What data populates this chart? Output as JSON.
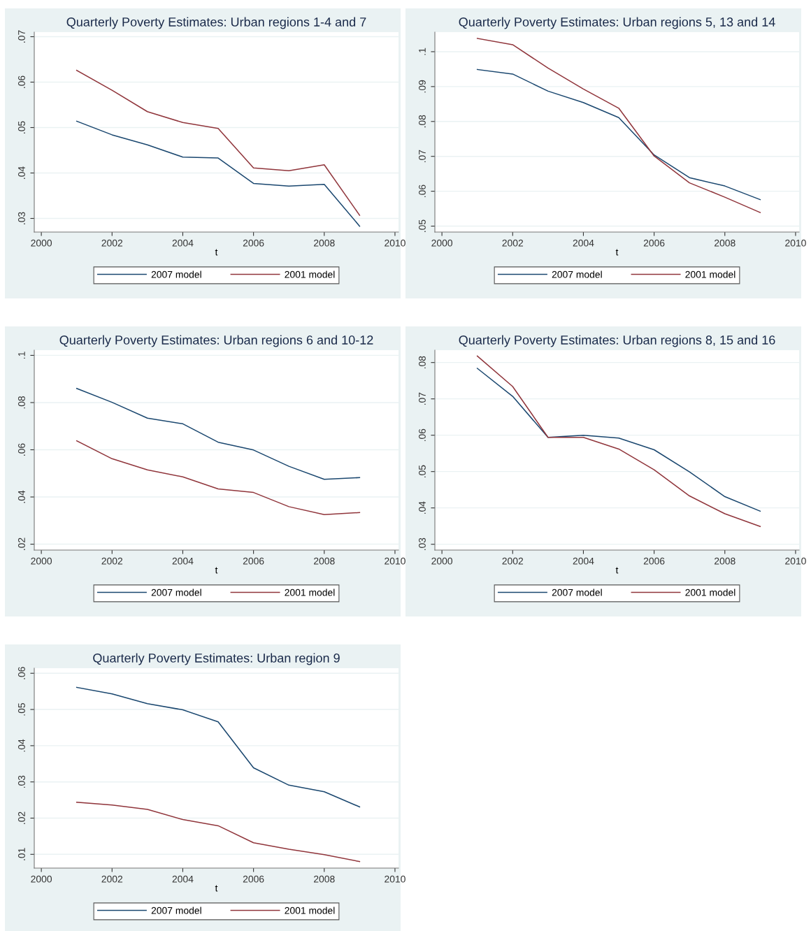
{
  "chart_data": [
    {
      "type": "line",
      "title": "Quarterly Poverty Estimates: Urban regions 1-4 and 7",
      "xlabel": "t",
      "x": [
        2001,
        2002,
        2003,
        2004,
        2005,
        2006,
        2007,
        2008,
        2009
      ],
      "xlim": [
        1999.8,
        2010.1
      ],
      "xticks": [
        2000,
        2002,
        2004,
        2006,
        2008,
        2010
      ],
      "ylim": [
        0.027,
        0.071
      ],
      "yticks": [
        {
          "value": 0.03,
          "label": ".03"
        },
        {
          "value": 0.04,
          "label": ".04"
        },
        {
          "value": 0.05,
          "label": ".05"
        },
        {
          "value": 0.06,
          "label": ".06"
        },
        {
          "value": 0.07,
          "label": ".07"
        }
      ],
      "grid": "y",
      "legend": "bottom",
      "series": [
        {
          "name": "2007 model",
          "color": "#1a476f",
          "values": [
            0.0514,
            0.0484,
            0.0462,
            0.0435,
            0.0433,
            0.0377,
            0.0371,
            0.0375,
            0.0283
          ]
        },
        {
          "name": "2001 model",
          "color": "#90353b",
          "values": [
            0.0626,
            0.0582,
            0.0535,
            0.0511,
            0.0498,
            0.0411,
            0.0405,
            0.0418,
            0.0307
          ]
        }
      ]
    },
    {
      "type": "line",
      "title": "Quarterly Poverty Estimates: Urban regions 5, 13 and 14",
      "xlabel": "t",
      "x": [
        2001,
        2002,
        2003,
        2004,
        2005,
        2006,
        2007,
        2008,
        2009
      ],
      "xlim": [
        1999.8,
        2010.1
      ],
      "xticks": [
        2000,
        2002,
        2004,
        2006,
        2008,
        2010
      ],
      "ylim": [
        0.0483,
        0.1056
      ],
      "yticks": [
        {
          "value": 0.05,
          "label": ".05"
        },
        {
          "value": 0.06,
          "label": ".06"
        },
        {
          "value": 0.07,
          "label": ".07"
        },
        {
          "value": 0.08,
          "label": ".08"
        },
        {
          "value": 0.09,
          "label": ".09"
        },
        {
          "value": 0.1,
          "label": ".1"
        }
      ],
      "grid": "y",
      "legend": "bottom",
      "series": [
        {
          "name": "2007 model",
          "color": "#1a476f",
          "values": [
            0.0949,
            0.0936,
            0.0887,
            0.0854,
            0.0811,
            0.0704,
            0.0639,
            0.0615,
            0.0576
          ]
        },
        {
          "name": "2001 model",
          "color": "#90353b",
          "values": [
            0.1038,
            0.102,
            0.0953,
            0.0893,
            0.0838,
            0.0701,
            0.0624,
            0.0583,
            0.0539
          ]
        }
      ]
    },
    {
      "type": "line",
      "title": "Quarterly Poverty Estimates: Urban regions 6 and 10-12",
      "xlabel": "t",
      "x": [
        2001,
        2002,
        2003,
        2004,
        2005,
        2006,
        2007,
        2008,
        2009
      ],
      "xlim": [
        1999.8,
        2010.1
      ],
      "xticks": [
        2000,
        2002,
        2004,
        2006,
        2008,
        2010
      ],
      "ylim": [
        0.0175,
        0.1022
      ],
      "yticks": [
        {
          "value": 0.02,
          "label": ".02"
        },
        {
          "value": 0.04,
          "label": ".04"
        },
        {
          "value": 0.06,
          "label": ".06"
        },
        {
          "value": 0.08,
          "label": ".08"
        },
        {
          "value": 0.1,
          "label": ".1"
        }
      ],
      "grid": "y",
      "legend": "bottom",
      "series": [
        {
          "name": "2007 model",
          "color": "#1a476f",
          "values": [
            0.086,
            0.0801,
            0.0734,
            0.071,
            0.0632,
            0.0599,
            0.053,
            0.0475,
            0.0482
          ]
        },
        {
          "name": "2001 model",
          "color": "#90353b",
          "values": [
            0.0638,
            0.0562,
            0.0515,
            0.0485,
            0.0434,
            0.0419,
            0.0359,
            0.0325,
            0.0334
          ]
        }
      ]
    },
    {
      "type": "line",
      "title": "Quarterly Poverty Estimates: Urban regions 8, 15 and 16",
      "xlabel": "t",
      "x": [
        2001,
        2002,
        2003,
        2004,
        2005,
        2006,
        2007,
        2008,
        2009
      ],
      "xlim": [
        1999.8,
        2010.1
      ],
      "xticks": [
        2000,
        2002,
        2004,
        2006,
        2008,
        2010
      ],
      "ylim": [
        0.0284,
        0.0834
      ],
      "yticks": [
        {
          "value": 0.03,
          "label": ".03"
        },
        {
          "value": 0.04,
          "label": ".04"
        },
        {
          "value": 0.05,
          "label": ".05"
        },
        {
          "value": 0.06,
          "label": ".06"
        },
        {
          "value": 0.07,
          "label": ".07"
        },
        {
          "value": 0.08,
          "label": ".08"
        }
      ],
      "grid": "y",
      "legend": "bottom",
      "series": [
        {
          "name": "2007 model",
          "color": "#1a476f",
          "values": [
            0.0784,
            0.0707,
            0.0594,
            0.06,
            0.0592,
            0.056,
            0.0499,
            0.0431,
            0.0391
          ]
        },
        {
          "name": "2001 model",
          "color": "#90353b",
          "values": [
            0.0818,
            0.0734,
            0.0594,
            0.0594,
            0.0562,
            0.0505,
            0.0433,
            0.0384,
            0.0349
          ]
        }
      ]
    },
    {
      "type": "line",
      "title": "Quarterly Poverty Estimates: Urban region 9",
      "xlabel": "t",
      "x": [
        2001,
        2002,
        2003,
        2004,
        2005,
        2006,
        2007,
        2008,
        2009
      ],
      "xlim": [
        1999.8,
        2010.1
      ],
      "xticks": [
        2000,
        2002,
        2004,
        2006,
        2008,
        2010
      ],
      "ylim": [
        0.0062,
        0.0614
      ],
      "yticks": [
        {
          "value": 0.01,
          "label": ".01"
        },
        {
          "value": 0.02,
          "label": ".02"
        },
        {
          "value": 0.03,
          "label": ".03"
        },
        {
          "value": 0.04,
          "label": ".04"
        },
        {
          "value": 0.05,
          "label": ".05"
        },
        {
          "value": 0.06,
          "label": ".06"
        }
      ],
      "grid": "y",
      "legend": "bottom",
      "series": [
        {
          "name": "2007 model",
          "color": "#1a476f",
          "values": [
            0.0561,
            0.0543,
            0.0516,
            0.0499,
            0.0466,
            0.0339,
            0.0291,
            0.0273,
            0.0231
          ]
        },
        {
          "name": "2001 model",
          "color": "#90353b",
          "values": [
            0.0244,
            0.0236,
            0.0224,
            0.0196,
            0.0179,
            0.0132,
            0.0114,
            0.0099,
            0.008
          ]
        }
      ]
    }
  ]
}
